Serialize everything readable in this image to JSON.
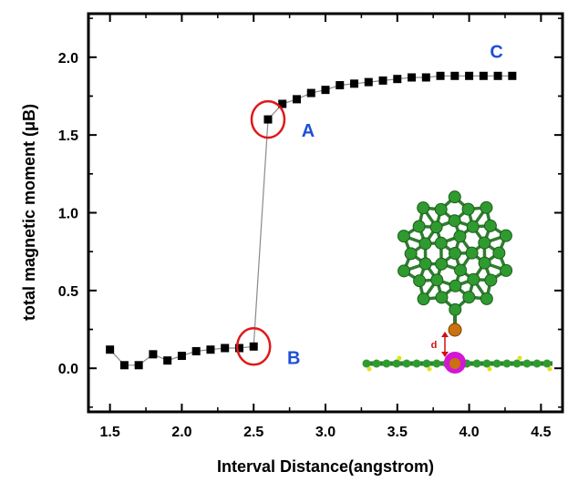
{
  "chart_data": {
    "type": "scatter",
    "xlabel": "Interval Distance(angstrom)",
    "ylabel": "total magnetic moment (μB)",
    "xlim": [
      1.35,
      4.65
    ],
    "ylim": [
      -0.28,
      2.28
    ],
    "x_ticks": [
      "1.5",
      "2.0",
      "2.5",
      "3.0",
      "3.5",
      "4.0",
      "4.5"
    ],
    "y_ticks": [
      "0.0",
      "0.5",
      "1.0",
      "1.5",
      "2.0"
    ],
    "grid": false,
    "series": [
      {
        "marker": "square",
        "color": "#000000",
        "points": [
          [
            1.5,
            0.12
          ],
          [
            1.6,
            0.02
          ],
          [
            1.7,
            0.02
          ],
          [
            1.8,
            0.09
          ],
          [
            1.9,
            0.05
          ],
          [
            2.0,
            0.08
          ],
          [
            2.1,
            0.11
          ],
          [
            2.2,
            0.12
          ],
          [
            2.3,
            0.13
          ],
          [
            2.4,
            0.13
          ],
          [
            2.5,
            0.14
          ],
          [
            2.6,
            1.6
          ],
          [
            2.7,
            1.7
          ],
          [
            2.8,
            1.73
          ],
          [
            2.9,
            1.77
          ],
          [
            3.0,
            1.79
          ],
          [
            3.1,
            1.82
          ],
          [
            3.2,
            1.83
          ],
          [
            3.3,
            1.84
          ],
          [
            3.4,
            1.85
          ],
          [
            3.5,
            1.86
          ],
          [
            3.6,
            1.87
          ],
          [
            3.7,
            1.87
          ],
          [
            3.8,
            1.88
          ],
          [
            3.9,
            1.88
          ],
          [
            4.0,
            1.88
          ],
          [
            4.1,
            1.88
          ],
          [
            4.2,
            1.88
          ],
          [
            4.3,
            1.88
          ]
        ]
      }
    ],
    "annotations": [
      {
        "label": "A",
        "x": 2.6,
        "y": 1.6,
        "color": "#1f4fd6"
      },
      {
        "label": "B",
        "x": 2.5,
        "y": 0.14,
        "color": "#1f4fd6"
      },
      {
        "label": "C",
        "x": 4.0,
        "y": 1.88,
        "color": "#1f4fd6"
      }
    ],
    "inset": {
      "label": "d"
    }
  }
}
